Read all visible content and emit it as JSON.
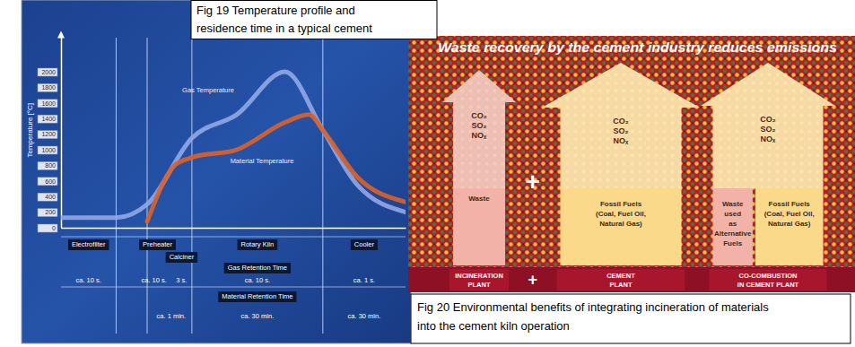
{
  "chart_data": {
    "type": "line",
    "y_label": "Temperature [°C]",
    "xlim": [
      0,
      100
    ],
    "ylim": [
      0,
      2500
    ],
    "yticks": [
      0,
      200,
      400,
      600,
      800,
      1000,
      1200,
      1400,
      1600,
      1800,
      2000
    ],
    "tick_labels": "y",
    "series": [
      {
        "name": "Gas Temperature",
        "color": "#8fa6e6",
        "x": [
          0,
          16,
          25,
          38,
          51,
          65,
          76,
          86,
          100
        ],
        "values": [
          130,
          130,
          300,
          1150,
          1450,
          2000,
          1250,
          550,
          200
        ]
      },
      {
        "name": "Material Temperature",
        "color": "#d9622b",
        "x": [
          25,
          33,
          38,
          51,
          65,
          72,
          76,
          86,
          100
        ],
        "values": [
          80,
          800,
          900,
          1000,
          1350,
          1450,
          1250,
          650,
          330
        ]
      }
    ],
    "dividers": [
      16,
      25,
      38,
      76
    ],
    "stages": [
      {
        "label": "Electrofilter",
        "x": 8
      },
      {
        "label": "Preheater",
        "x": 28
      },
      {
        "label": "Calciner",
        "x": 35
      },
      {
        "label": "Rotary Kiln",
        "x": 57
      },
      {
        "label": "Cooler",
        "x": 88
      }
    ],
    "gas_retention_time": {
      "label": "Gas Retention Time",
      "x": 57,
      "times": [
        {
          "label": "ca. 10 s.",
          "x": 8
        },
        {
          "label": "ca. 10 s.",
          "x": 27
        },
        {
          "label": "3 s.",
          "x": 35
        },
        {
          "label": "ca. 10 s.",
          "x": 57
        },
        {
          "label": "ca. 1 s.",
          "x": 88
        }
      ]
    },
    "material_retention_time": {
      "label": "Material Retention Time",
      "x": 57,
      "times": [
        {
          "label": "ca. 1 min.",
          "x": 32
        },
        {
          "label": "ca. 30 min.",
          "x": 57
        },
        {
          "label": "ca. 30 min.",
          "x": 88
        }
      ]
    }
  },
  "figure_19_caption": [
    "Fig 19 Temperature profile and",
    "residence time in a typical cement"
  ],
  "figure_20": {
    "title": "Waste recovery by the cement industry reduces emissions",
    "operator": "+",
    "columns": [
      {
        "color": "#f4c9c0",
        "emissions": [
          "CO₂",
          "SO₂",
          "NOₓ"
        ],
        "inputs": [
          {
            "lines": [
              "Waste"
            ],
            "color": "#f2b2a7"
          }
        ],
        "plant": [
          "INCINERATION",
          "PLANT"
        ]
      },
      {
        "color": "#fde6ae",
        "emissions": [
          "CO₂",
          "SO₂",
          "NOₓ"
        ],
        "inputs": [
          {
            "lines": [
              "Fossil Fuels",
              "(Coal, Fuel Oil,",
              "Natural Gas)"
            ],
            "color": "#fbd98a"
          }
        ],
        "plant": [
          "CEMENT",
          "PLANT"
        ]
      },
      {
        "color": "#fde6ae",
        "emissions": [
          "CO₂",
          "SO₂",
          "NOₓ"
        ],
        "inputs": [
          {
            "lines": [
              "Waste",
              "used",
              "as",
              "Alternative",
              "Fuels"
            ],
            "color": "#f2b2a7"
          },
          {
            "lines": [
              "Fossil Fuels",
              "(Coal, Fuel Oil,",
              "Natural Gas)"
            ],
            "color": "#fbd98a"
          }
        ],
        "plant": [
          "CO-COMBUSTION",
          "IN CEMENT PLANT"
        ]
      }
    ],
    "caption": [
      "Fig 20 Environmental benefits of integrating incineration of materials",
      "into the cement kiln operation"
    ]
  }
}
